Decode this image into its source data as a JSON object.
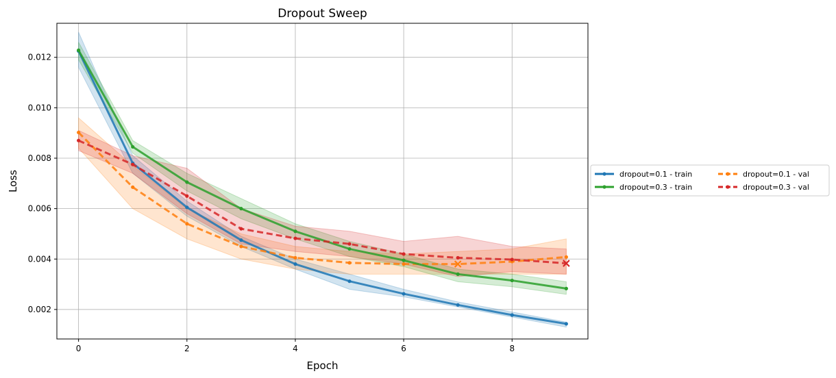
{
  "chart_data": {
    "type": "line",
    "title": "Dropout Sweep",
    "xlabel": "Epoch",
    "ylabel": "Loss",
    "xlim": [
      -0.4,
      9.4
    ],
    "ylim": [
      0.00083,
      0.01335
    ],
    "xticks": [
      0,
      2,
      4,
      6,
      8
    ],
    "yticks": [
      0.002,
      0.004,
      0.006,
      0.008,
      0.01,
      0.012
    ],
    "ytick_labels": [
      "0.002",
      "0.004",
      "0.006",
      "0.008",
      "0.010",
      "0.012"
    ],
    "grid": true,
    "legend_placement": "center-right outside",
    "x": [
      0,
      1,
      2,
      3,
      4,
      5,
      6,
      7,
      8,
      9
    ],
    "series": [
      {
        "name": "dropout=0.1 - train",
        "color": "#1f77b4",
        "dashed": false,
        "values": [
          0.01225,
          0.0078,
          0.00605,
          0.00475,
          0.0038,
          0.00312,
          0.00262,
          0.00218,
          0.00178,
          0.00143
        ],
        "band_upper": [
          0.013,
          0.0081,
          0.0063,
          0.0049,
          0.004,
          0.0034,
          0.0028,
          0.0023,
          0.0019,
          0.0015
        ],
        "band_lower": [
          0.0116,
          0.0074,
          0.0057,
          0.0045,
          0.0036,
          0.0028,
          0.0025,
          0.0021,
          0.0017,
          0.0013
        ],
        "best_marker": false
      },
      {
        "name": "dropout=0.1 - val",
        "color": "#ff7f0e",
        "dashed": true,
        "values": [
          0.00902,
          0.00685,
          0.0054,
          0.0045,
          0.00405,
          0.00385,
          0.0038,
          0.0038,
          0.0039,
          0.00408
        ],
        "band_upper": [
          0.0096,
          0.0077,
          0.006,
          0.005,
          0.0045,
          0.0043,
          0.0042,
          0.0043,
          0.0044,
          0.0048
        ],
        "band_lower": [
          0.0084,
          0.006,
          0.0048,
          0.004,
          0.0036,
          0.0034,
          0.0034,
          0.0034,
          0.0034,
          0.0034
        ],
        "best_marker": true,
        "best_index": 7
      },
      {
        "name": "dropout=0.3 - train",
        "color": "#2ca02c",
        "dashed": false,
        "values": [
          0.01228,
          0.00845,
          0.00705,
          0.006,
          0.0051,
          0.0044,
          0.00395,
          0.0034,
          0.00315,
          0.00283
        ],
        "band_upper": [
          0.0126,
          0.0087,
          0.0074,
          0.0064,
          0.0054,
          0.0047,
          0.0042,
          0.0036,
          0.0034,
          0.0031
        ],
        "band_lower": [
          0.0119,
          0.0082,
          0.0067,
          0.0056,
          0.0048,
          0.0041,
          0.0037,
          0.0031,
          0.0029,
          0.0026
        ],
        "best_marker": false
      },
      {
        "name": "dropout=0.3 - val",
        "color": "#d62728",
        "dashed": true,
        "values": [
          0.0087,
          0.00775,
          0.0065,
          0.0052,
          0.00482,
          0.0046,
          0.0042,
          0.00405,
          0.00398,
          0.00383
        ],
        "band_upper": [
          0.0091,
          0.0081,
          0.0076,
          0.006,
          0.0053,
          0.0051,
          0.0047,
          0.0049,
          0.0045,
          0.0044
        ],
        "band_lower": [
          0.0083,
          0.0074,
          0.0058,
          0.0046,
          0.0043,
          0.0041,
          0.0038,
          0.0033,
          0.0035,
          0.0034
        ],
        "best_marker": true,
        "best_index": 9
      }
    ],
    "legend_order": [
      0,
      2,
      1,
      3
    ]
  }
}
